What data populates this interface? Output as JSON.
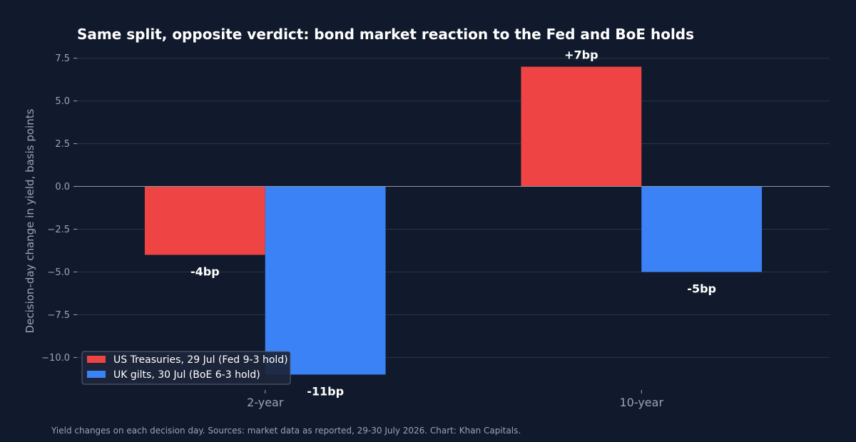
{
  "chart_data": {
    "type": "bar",
    "title": "Same split, opposite verdict: bond market reaction to the Fed and BoE holds",
    "ylabel": "Decision-day change in yield, basis points",
    "xlabel": "",
    "categories": [
      "2-year",
      "10-year"
    ],
    "series": [
      {
        "name": "US Treasuries, 29 Jul (Fed 9-3 hold)",
        "color": "#ef4444",
        "values": [
          -4,
          7
        ],
        "labels": [
          "-4bp",
          "+7bp"
        ]
      },
      {
        "name": "UK gilts, 30 Jul (BoE 6-3 hold)",
        "color": "#3b82f6",
        "values": [
          -11,
          -5
        ],
        "labels": [
          "-11bp",
          "-5bp"
        ]
      }
    ],
    "ylim": [
      -11.9,
      7.9
    ],
    "yticks": [
      -10.0,
      -7.5,
      -5.0,
      -2.5,
      0.0,
      2.5,
      5.0,
      7.5
    ],
    "ytick_labels": [
      "−10.0",
      "−7.5",
      "−5.0",
      "−2.5",
      "0.0",
      "2.5",
      "5.0",
      "7.5"
    ],
    "grid": true,
    "legend_position": "bottom-left",
    "footnote": "Yield changes on each decision day. Sources: market data as reported, 29-30 July 2026. Chart: Khan Capitals."
  }
}
